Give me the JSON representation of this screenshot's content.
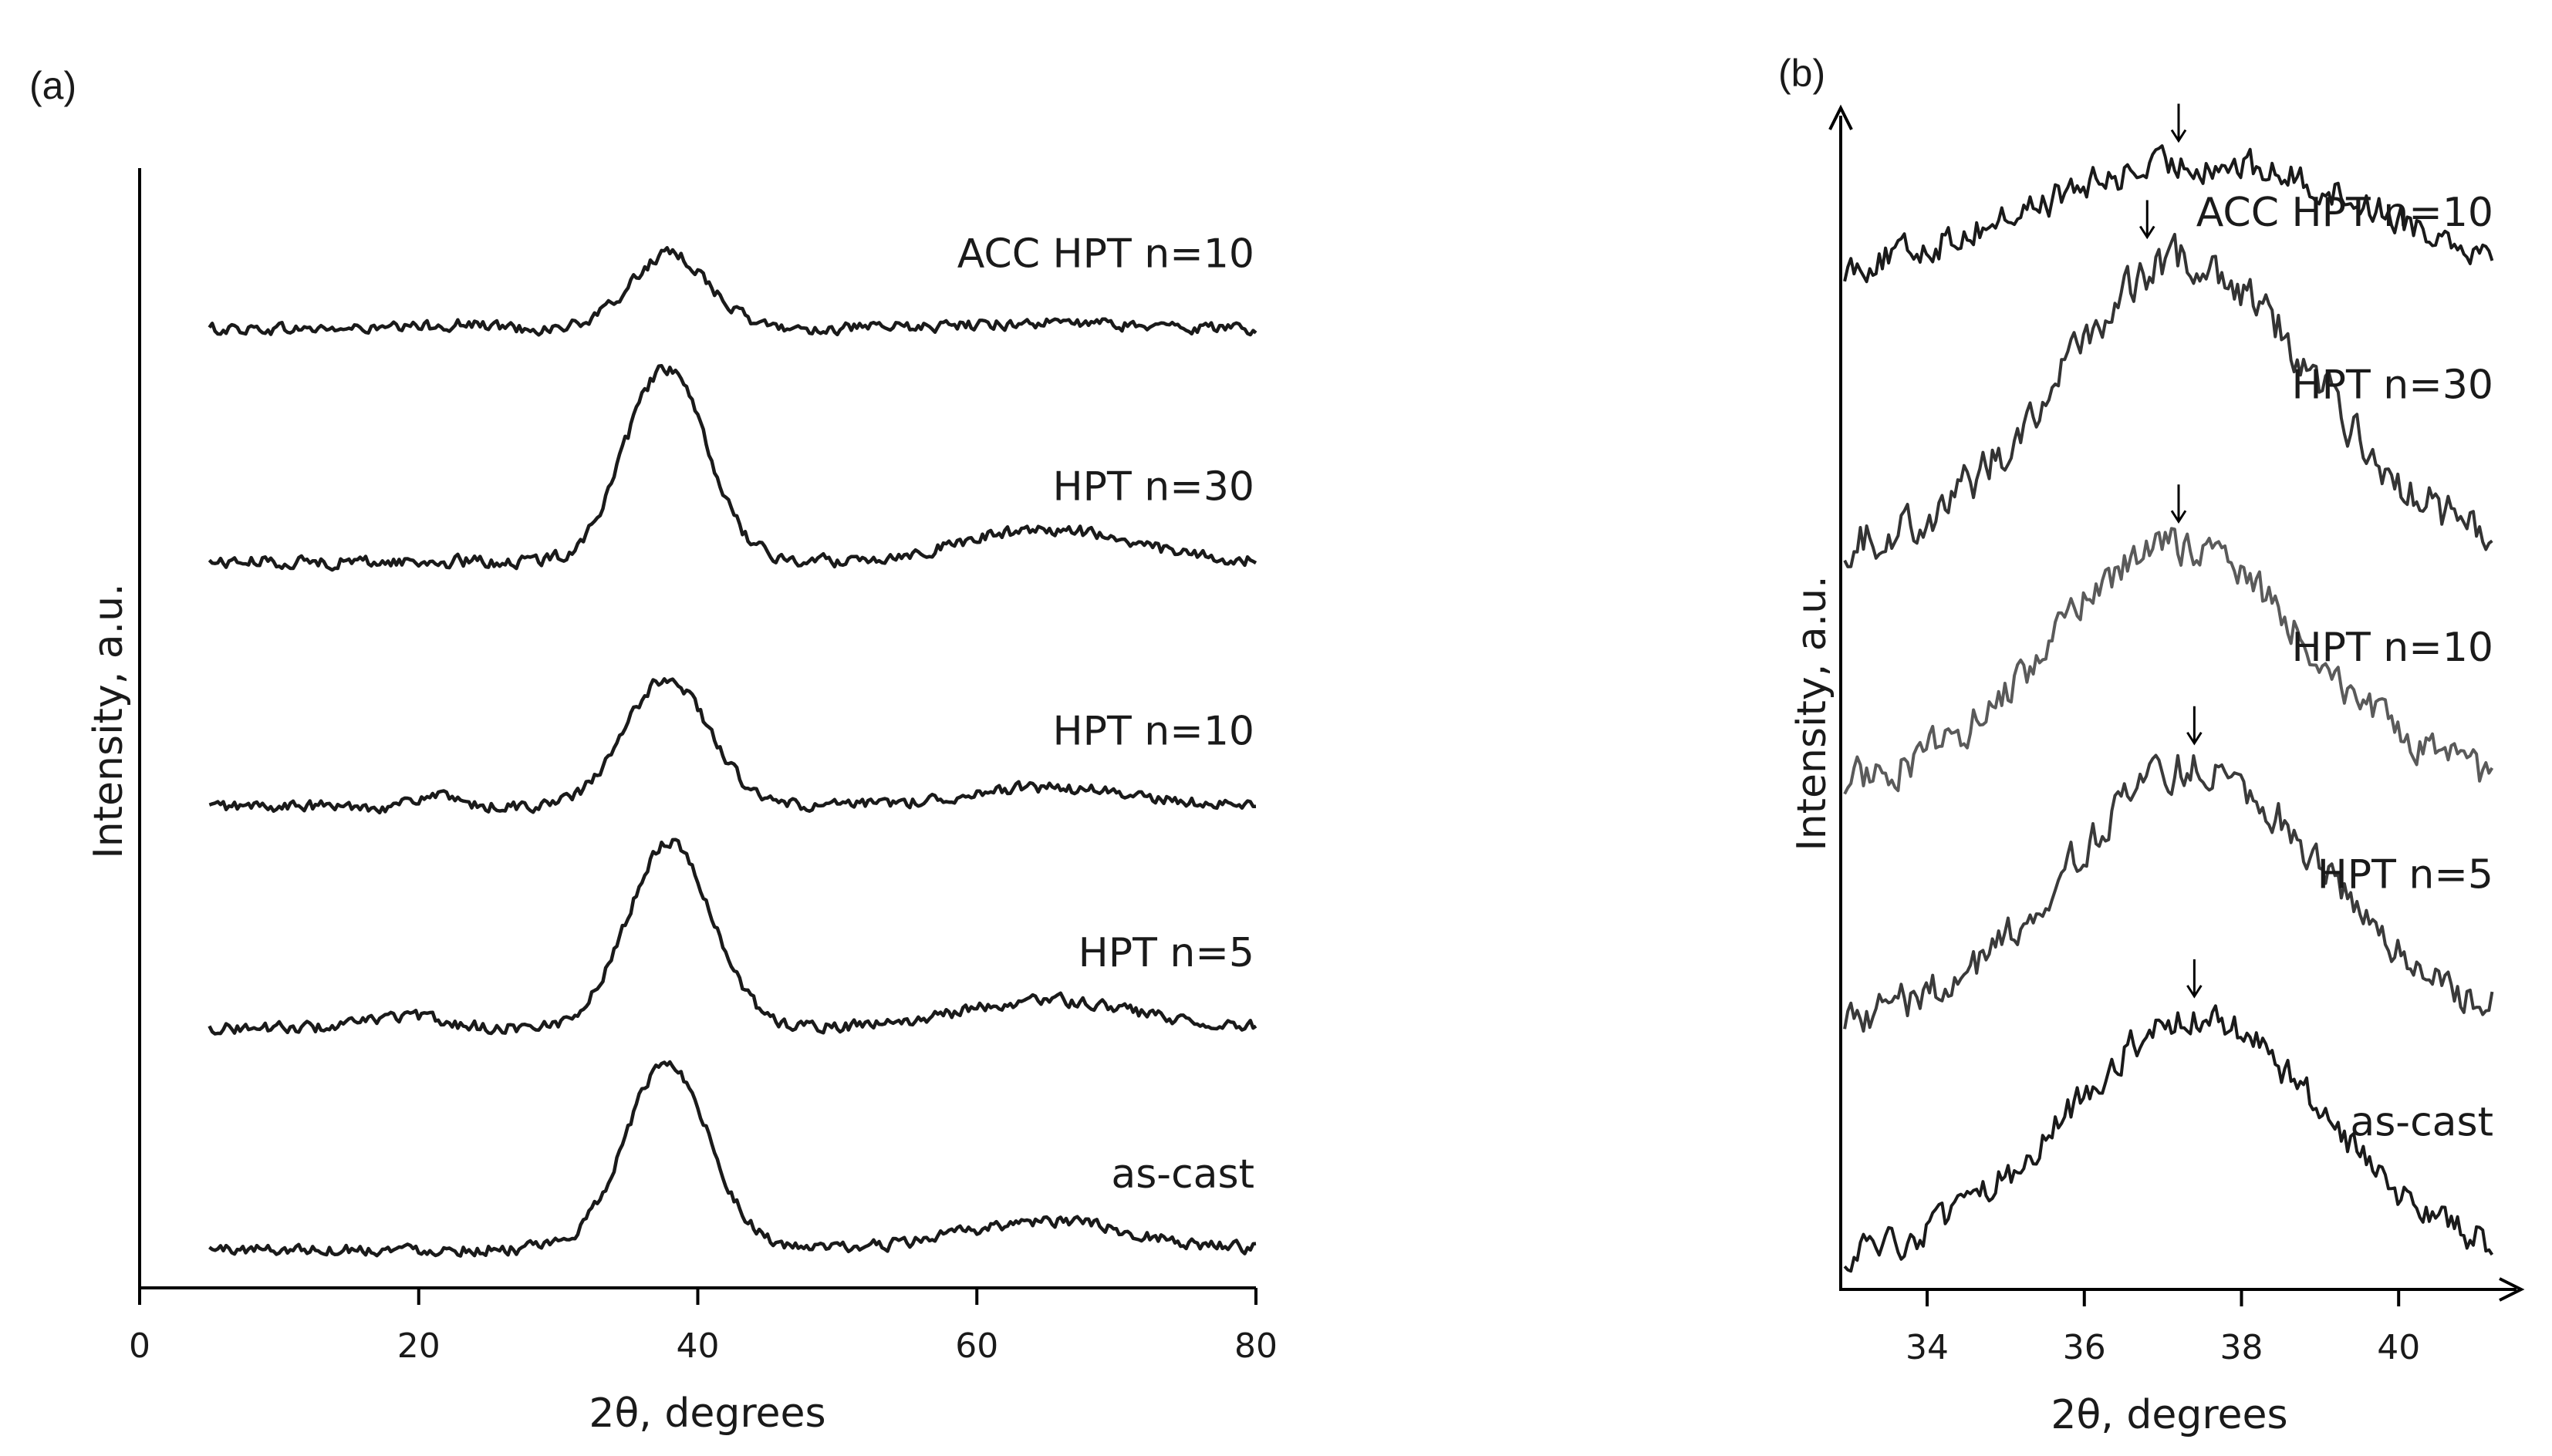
{
  "chart_data": [
    {
      "panel": "(a)",
      "type": "line",
      "xlabel": "2θ, degrees",
      "ylabel": "Intensity, a.u.",
      "xlim": [
        0,
        80
      ],
      "xticks": [
        "0",
        "20",
        "40",
        "60",
        "80"
      ],
      "x_range": [
        5,
        80
      ],
      "grid": false,
      "series": [
        {
          "name": "ACC HPT n=10",
          "baseline": 4.05,
          "peak_center": 38.0,
          "peak_height": 0.32,
          "peak_width": 2.8,
          "bumps": [
            {
              "x": 23,
              "h": 0.02,
              "w": 2.2
            },
            {
              "x": 65,
              "h": 0.025,
              "w": 6
            }
          ],
          "noise": 0.022,
          "color": "#1a1a1a"
        },
        {
          "name": "HPT n=30",
          "baseline": 3.05,
          "peak_center": 37.7,
          "peak_height": 0.83,
          "peak_width": 2.9,
          "bumps": [
            {
              "x": 65,
              "h": 0.14,
              "w": 6
            }
          ],
          "noise": 0.024,
          "color": "#1a1a1a"
        },
        {
          "name": "HPT n=10",
          "baseline": 2.0,
          "peak_center": 37.8,
          "peak_height": 0.55,
          "peak_width": 3.0,
          "bumps": [
            {
              "x": 21,
              "h": 0.05,
              "w": 1.2
            },
            {
              "x": 65,
              "h": 0.08,
              "w": 6
            }
          ],
          "noise": 0.022,
          "color": "#1a1a1a"
        },
        {
          "name": "HPT n=5",
          "baseline": 1.05,
          "peak_center": 38.0,
          "peak_height": 0.8,
          "peak_width": 3.0,
          "bumps": [
            {
              "x": 19,
              "h": 0.05,
              "w": 2.5
            },
            {
              "x": 65,
              "h": 0.12,
              "w": 6
            }
          ],
          "noise": 0.022,
          "color": "#1a1a1a"
        },
        {
          "name": "as-cast",
          "baseline": 0.1,
          "peak_center": 37.8,
          "peak_height": 0.8,
          "peak_width": 3.0,
          "bumps": [
            {
              "x": 65,
              "h": 0.12,
              "w": 6
            }
          ],
          "noise": 0.022,
          "color": "#1a1a1a"
        }
      ],
      "ylim": [
        0,
        4.7
      ]
    },
    {
      "panel": "(b)",
      "type": "line",
      "xlabel": "2θ, degrees",
      "ylabel": "Intensity, a.u.",
      "xlim": [
        32.9,
        41.5
      ],
      "xticks": [
        "34",
        "36",
        "38",
        "40"
      ],
      "x_range": [
        32.95,
        41.2
      ],
      "grid": false,
      "series": [
        {
          "name": "ACC HPT n=10",
          "baseline": 4.1,
          "peak_center": 37.5,
          "peak_height": 0.5,
          "peak_width": 2.3,
          "noise": 0.06,
          "arrow_x": 37.2,
          "color": "#1a1a1a"
        },
        {
          "name": "HPT n=30",
          "baseline": 3.0,
          "peak_center": 37.3,
          "peak_height": 1.2,
          "peak_width": 1.6,
          "noise": 0.08,
          "arrow_x": 36.8,
          "color": "#333333"
        },
        {
          "name": "HPT n=10",
          "baseline": 2.02,
          "peak_center": 37.2,
          "peak_height": 1.0,
          "peak_width": 1.6,
          "noise": 0.07,
          "arrow_x": 37.2,
          "color": "#5a5a5a"
        },
        {
          "name": "HPT n=5",
          "baseline": 1.05,
          "peak_center": 37.4,
          "peak_height": 1.05,
          "peak_width": 1.6,
          "noise": 0.07,
          "arrow_x": 37.4,
          "color": "#3a3a3a"
        },
        {
          "name": "as-cast",
          "baseline": 0.05,
          "peak_center": 37.4,
          "peak_height": 1.0,
          "peak_width": 1.65,
          "noise": 0.06,
          "arrow_x": 37.4,
          "color": "#1a1a1a"
        }
      ],
      "ylim": [
        0,
        4.8
      ]
    }
  ]
}
